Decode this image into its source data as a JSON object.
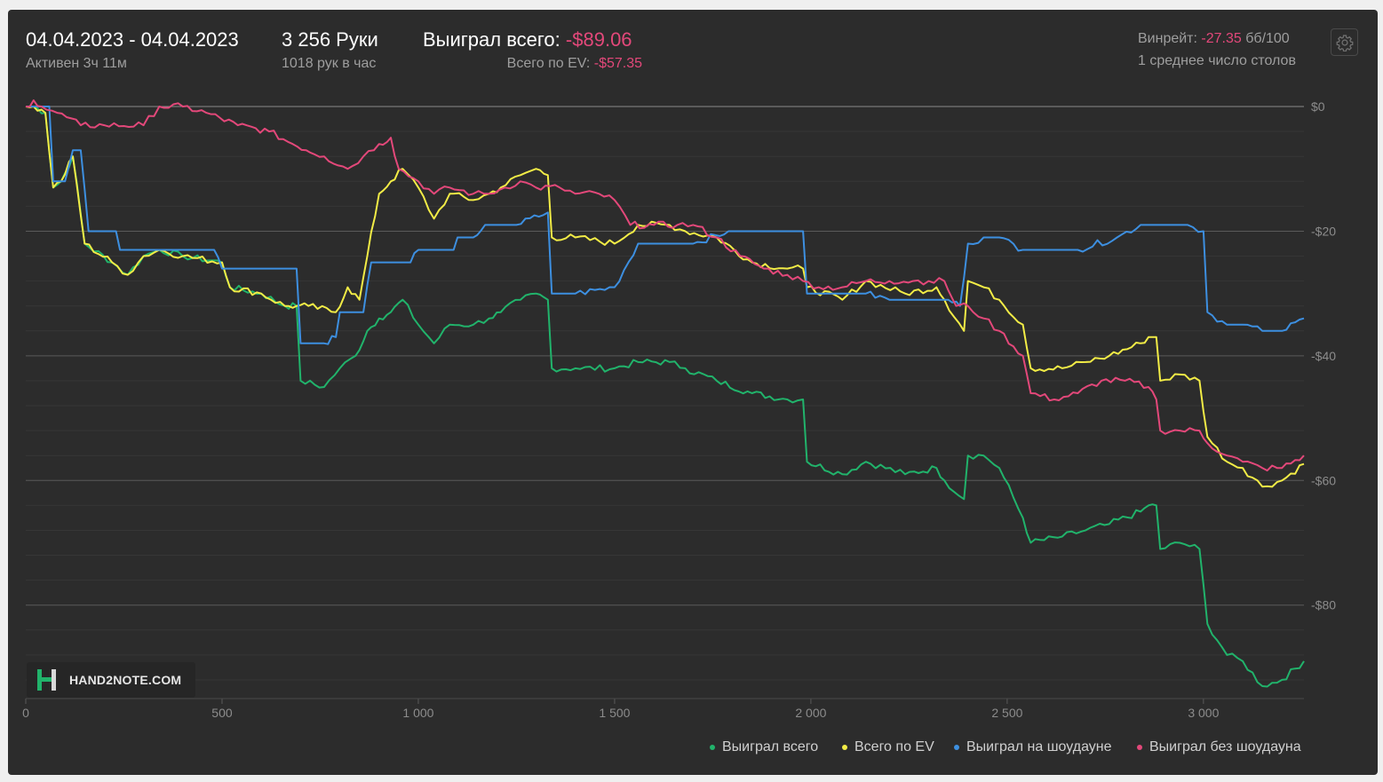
{
  "header": {
    "date_range": "04.04.2023 - 04.04.2023",
    "active_time": "Активен 3ч 11м",
    "hands": "3 256 Руки",
    "hands_per_hour": "1018 рук в час",
    "won_total_label": "Выиграл всего:",
    "won_total_value": "-$89.06",
    "ev_total_label": "Всего по EV:",
    "ev_total_value": "-$57.35",
    "winrate_label": "Винрейт:",
    "winrate_value": "-27.35",
    "winrate_unit": "бб/100",
    "avg_tables": "1 среднее число столов"
  },
  "logo": {
    "text": "HAND2NOTE.COM"
  },
  "colors": {
    "green": "#21b36b",
    "yellow": "#f2ec46",
    "blue": "#3d8fe0",
    "pink": "#e3487a",
    "negative": "#e3487a",
    "background": "#2c2c2c"
  },
  "icons": {
    "settings": "gear-icon"
  },
  "chart_data": {
    "type": "line",
    "xlabel": "",
    "ylabel": "",
    "xlim": [
      0,
      3256
    ],
    "ylim": [
      -95,
      2
    ],
    "x_ticks": [
      0,
      500,
      1000,
      1500,
      2000,
      2500,
      3000
    ],
    "x_tick_labels": [
      "0",
      "500",
      "1 000",
      "1 500",
      "2 000",
      "2 500",
      "3 000"
    ],
    "y_ticks": [
      0,
      -20,
      -40,
      -60,
      -80
    ],
    "y_tick_labels": [
      "$0",
      "-$20",
      "-$40",
      "-$60",
      "-$80"
    ],
    "grid": true,
    "legend_position": "bottom-right",
    "series": [
      {
        "name": "Выиграл всего",
        "color": "#21b36b",
        "points": [
          [
            0,
            0
          ],
          [
            20,
            0
          ],
          [
            50,
            -1
          ],
          [
            70,
            -13
          ],
          [
            90,
            -12
          ],
          [
            120,
            -8
          ],
          [
            150,
            -22
          ],
          [
            220,
            -25
          ],
          [
            260,
            -27
          ],
          [
            300,
            -24
          ],
          [
            340,
            -23
          ],
          [
            400,
            -24
          ],
          [
            500,
            -25
          ],
          [
            520,
            -29
          ],
          [
            600,
            -30
          ],
          [
            660,
            -32
          ],
          [
            690,
            -32
          ],
          [
            700,
            -44
          ],
          [
            760,
            -45
          ],
          [
            800,
            -42
          ],
          [
            840,
            -40
          ],
          [
            870,
            -36
          ],
          [
            900,
            -34
          ],
          [
            930,
            -33
          ],
          [
            960,
            -31
          ],
          [
            1000,
            -35
          ],
          [
            1040,
            -38
          ],
          [
            1080,
            -35
          ],
          [
            1140,
            -35
          ],
          [
            1180,
            -34
          ],
          [
            1210,
            -33
          ],
          [
            1260,
            -31
          ],
          [
            1300,
            -30
          ],
          [
            1330,
            -31
          ],
          [
            1340,
            -42
          ],
          [
            1400,
            -42
          ],
          [
            1500,
            -42
          ],
          [
            1560,
            -41
          ],
          [
            1640,
            -41
          ],
          [
            1680,
            -42
          ],
          [
            1760,
            -44
          ],
          [
            1850,
            -46
          ],
          [
            1940,
            -47
          ],
          [
            1980,
            -47
          ],
          [
            1990,
            -57
          ],
          [
            2080,
            -59
          ],
          [
            2140,
            -57
          ],
          [
            2240,
            -59
          ],
          [
            2320,
            -58
          ],
          [
            2340,
            -60
          ],
          [
            2390,
            -63
          ],
          [
            2400,
            -56
          ],
          [
            2440,
            -56
          ],
          [
            2480,
            -58
          ],
          [
            2540,
            -66
          ],
          [
            2560,
            -70
          ],
          [
            2640,
            -69
          ],
          [
            2700,
            -68
          ],
          [
            2760,
            -67
          ],
          [
            2840,
            -65
          ],
          [
            2860,
            -64
          ],
          [
            2880,
            -64
          ],
          [
            2890,
            -71
          ],
          [
            2940,
            -70
          ],
          [
            2990,
            -71
          ],
          [
            3010,
            -83
          ],
          [
            3060,
            -88
          ],
          [
            3100,
            -89
          ],
          [
            3150,
            -93
          ],
          [
            3200,
            -92
          ],
          [
            3256,
            -89
          ]
        ]
      },
      {
        "name": "Всего по EV",
        "color": "#f2ec46",
        "points": [
          [
            0,
            0
          ],
          [
            20,
            0
          ],
          [
            50,
            -1
          ],
          [
            70,
            -13
          ],
          [
            90,
            -12
          ],
          [
            120,
            -8
          ],
          [
            150,
            -22
          ],
          [
            220,
            -25
          ],
          [
            260,
            -27
          ],
          [
            300,
            -24
          ],
          [
            340,
            -23
          ],
          [
            400,
            -24
          ],
          [
            500,
            -25
          ],
          [
            520,
            -29
          ],
          [
            600,
            -30
          ],
          [
            660,
            -32
          ],
          [
            690,
            -32
          ],
          [
            720,
            -32
          ],
          [
            790,
            -33
          ],
          [
            820,
            -29
          ],
          [
            850,
            -31
          ],
          [
            870,
            -24
          ],
          [
            900,
            -14
          ],
          [
            930,
            -12
          ],
          [
            960,
            -10
          ],
          [
            1000,
            -13
          ],
          [
            1040,
            -18
          ],
          [
            1080,
            -14
          ],
          [
            1140,
            -15
          ],
          [
            1180,
            -14
          ],
          [
            1210,
            -13
          ],
          [
            1260,
            -11
          ],
          [
            1300,
            -10
          ],
          [
            1330,
            -11
          ],
          [
            1340,
            -21
          ],
          [
            1400,
            -21
          ],
          [
            1500,
            -22
          ],
          [
            1560,
            -19
          ],
          [
            1640,
            -19
          ],
          [
            1680,
            -20
          ],
          [
            1760,
            -21
          ],
          [
            1850,
            -25
          ],
          [
            1940,
            -26
          ],
          [
            1980,
            -26
          ],
          [
            1990,
            -29
          ],
          [
            2080,
            -31
          ],
          [
            2140,
            -28
          ],
          [
            2240,
            -30
          ],
          [
            2320,
            -29
          ],
          [
            2340,
            -31
          ],
          [
            2390,
            -36
          ],
          [
            2400,
            -28
          ],
          [
            2440,
            -29
          ],
          [
            2480,
            -31
          ],
          [
            2540,
            -35
          ],
          [
            2560,
            -42
          ],
          [
            2640,
            -42
          ],
          [
            2700,
            -41
          ],
          [
            2760,
            -40
          ],
          [
            2840,
            -38
          ],
          [
            2860,
            -37
          ],
          [
            2880,
            -37
          ],
          [
            2890,
            -44
          ],
          [
            2940,
            -43
          ],
          [
            2990,
            -44
          ],
          [
            3010,
            -53
          ],
          [
            3060,
            -57
          ],
          [
            3100,
            -58
          ],
          [
            3150,
            -61
          ],
          [
            3200,
            -60
          ],
          [
            3256,
            -57.35
          ]
        ]
      },
      {
        "name": "Выиграл на шоудауне",
        "color": "#3d8fe0",
        "points": [
          [
            0,
            0
          ],
          [
            60,
            0
          ],
          [
            70,
            -12
          ],
          [
            100,
            -12
          ],
          [
            120,
            -7
          ],
          [
            140,
            -7
          ],
          [
            160,
            -20
          ],
          [
            230,
            -20
          ],
          [
            240,
            -23
          ],
          [
            480,
            -23
          ],
          [
            500,
            -26
          ],
          [
            690,
            -26
          ],
          [
            700,
            -38
          ],
          [
            760,
            -38
          ],
          [
            790,
            -37
          ],
          [
            800,
            -33
          ],
          [
            860,
            -33
          ],
          [
            880,
            -25
          ],
          [
            980,
            -25
          ],
          [
            1000,
            -23
          ],
          [
            1050,
            -23
          ],
          [
            1090,
            -23
          ],
          [
            1100,
            -21
          ],
          [
            1140,
            -21
          ],
          [
            1170,
            -19
          ],
          [
            1250,
            -19
          ],
          [
            1330,
            -17
          ],
          [
            1340,
            -30
          ],
          [
            1400,
            -30
          ],
          [
            1500,
            -29
          ],
          [
            1560,
            -22
          ],
          [
            1700,
            -22
          ],
          [
            1790,
            -20
          ],
          [
            1900,
            -20
          ],
          [
            1980,
            -20
          ],
          [
            1990,
            -30
          ],
          [
            2080,
            -30
          ],
          [
            2140,
            -30
          ],
          [
            2200,
            -31
          ],
          [
            2300,
            -31
          ],
          [
            2350,
            -31
          ],
          [
            2380,
            -32
          ],
          [
            2400,
            -22
          ],
          [
            2440,
            -21
          ],
          [
            2480,
            -21
          ],
          [
            2540,
            -23
          ],
          [
            2600,
            -23
          ],
          [
            2680,
            -23
          ],
          [
            2780,
            -21
          ],
          [
            2840,
            -19
          ],
          [
            2960,
            -19
          ],
          [
            3000,
            -20
          ],
          [
            3010,
            -33
          ],
          [
            3060,
            -35
          ],
          [
            3100,
            -35
          ],
          [
            3150,
            -36
          ],
          [
            3200,
            -36
          ],
          [
            3256,
            -34
          ]
        ]
      },
      {
        "name": "Выиграл без шоудауна",
        "color": "#e3487a",
        "points": [
          [
            0,
            0
          ],
          [
            20,
            1
          ],
          [
            40,
            0
          ],
          [
            80,
            -1
          ],
          [
            140,
            -3
          ],
          [
            200,
            -3
          ],
          [
            300,
            -3
          ],
          [
            340,
            0
          ],
          [
            400,
            0
          ],
          [
            460,
            -1
          ],
          [
            540,
            -3
          ],
          [
            620,
            -4
          ],
          [
            680,
            -6
          ],
          [
            760,
            -8
          ],
          [
            820,
            -10
          ],
          [
            860,
            -8
          ],
          [
            900,
            -6
          ],
          [
            930,
            -5
          ],
          [
            950,
            -10
          ],
          [
            1000,
            -12
          ],
          [
            1040,
            -14
          ],
          [
            1080,
            -13
          ],
          [
            1140,
            -14
          ],
          [
            1180,
            -14
          ],
          [
            1220,
            -13
          ],
          [
            1260,
            -12
          ],
          [
            1300,
            -13
          ],
          [
            1360,
            -13
          ],
          [
            1400,
            -14
          ],
          [
            1460,
            -14
          ],
          [
            1500,
            -15
          ],
          [
            1540,
            -19
          ],
          [
            1600,
            -19
          ],
          [
            1660,
            -19
          ],
          [
            1700,
            -19
          ],
          [
            1760,
            -21
          ],
          [
            1820,
            -24
          ],
          [
            1880,
            -26
          ],
          [
            1940,
            -27
          ],
          [
            1980,
            -28
          ],
          [
            2020,
            -29
          ],
          [
            2080,
            -29
          ],
          [
            2140,
            -28
          ],
          [
            2200,
            -28
          ],
          [
            2260,
            -28
          ],
          [
            2300,
            -28
          ],
          [
            2340,
            -28
          ],
          [
            2370,
            -32
          ],
          [
            2400,
            -32
          ],
          [
            2440,
            -34
          ],
          [
            2480,
            -36
          ],
          [
            2540,
            -40
          ],
          [
            2560,
            -46
          ],
          [
            2620,
            -47
          ],
          [
            2680,
            -46
          ],
          [
            2740,
            -44
          ],
          [
            2800,
            -44
          ],
          [
            2860,
            -45
          ],
          [
            2880,
            -47
          ],
          [
            2890,
            -52
          ],
          [
            2940,
            -52
          ],
          [
            2990,
            -52
          ],
          [
            3010,
            -54
          ],
          [
            3060,
            -56
          ],
          [
            3100,
            -57
          ],
          [
            3150,
            -58
          ],
          [
            3200,
            -58
          ],
          [
            3256,
            -56
          ]
        ]
      }
    ]
  }
}
